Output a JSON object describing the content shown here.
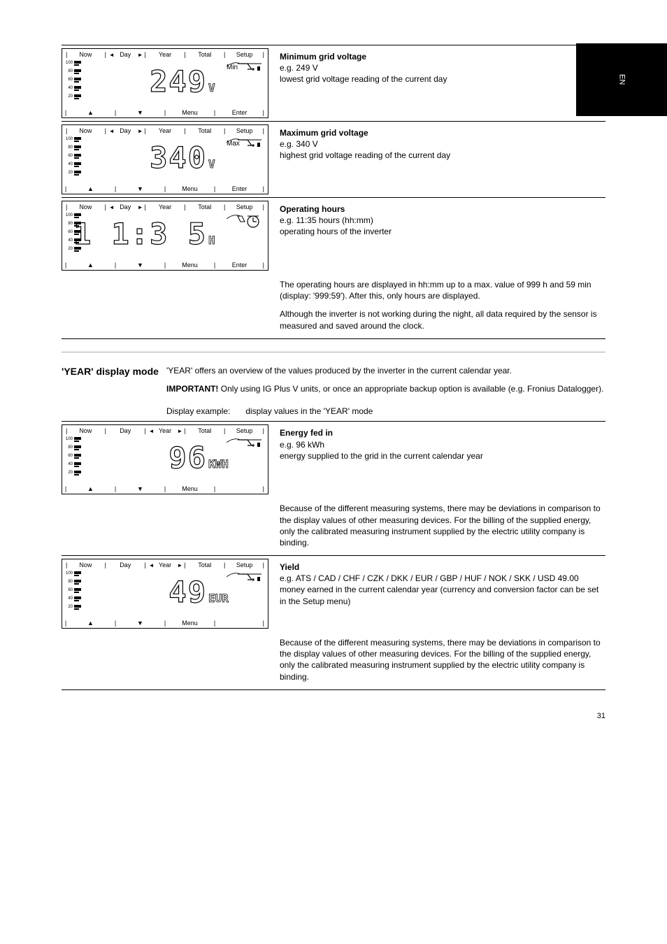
{
  "side_tab": "EN",
  "tabs": {
    "now": "Now",
    "day": "Day",
    "year": "Year",
    "total": "Total",
    "setup": "Setup",
    "menu": "Menu",
    "enter": "Enter"
  },
  "gauge": {
    "ticks": [
      "100",
      "80",
      "60",
      "40",
      "20"
    ]
  },
  "screens": {
    "min_grid_voltage": {
      "value": "249",
      "unit": "V",
      "tag": "Min",
      "icon": "grid-plug",
      "label": "Minimum grid voltage",
      "example": {
        "label": "e.g.",
        "value": "249 V"
      },
      "extra": "lowest grid voltage reading of the current day",
      "show_enter": true
    },
    "max_grid_voltage": {
      "value": "340",
      "unit": "V",
      "tag": "Max",
      "icon": "grid-plug",
      "label": "Maximum grid voltage",
      "example": {
        "label": "e.g.",
        "value": "340 V"
      },
      "extra": "highest grid voltage reading of the current day",
      "show_enter": true
    },
    "operating_hours": {
      "value": "1 1:3 5",
      "unit": "H",
      "tag": "",
      "icon": "clock",
      "label": "Operating hours",
      "example": {
        "label": "e.g.",
        "value": "11:35 hours (hh:mm)"
      },
      "extra": "operating hours of the inverter",
      "show_enter": true
    },
    "year_energy": {
      "value": "96",
      "unit": "KWH",
      "tag": "",
      "icon": "grid-plug",
      "label": "Energy fed in",
      "example": {
        "label": "e.g.",
        "value": "96 kWh"
      },
      "extra": "energy supplied to the grid in the current calendar year",
      "show_enter": false
    },
    "year_yield": {
      "value": "49",
      "unit": "EUR",
      "tag": "",
      "icon": "grid-plug",
      "label": "Yield",
      "example": {
        "label": "e.g.",
        "value": "ATS / CAD / CHF / CZK / DKK / EUR / GBP / HUF / NOK / SKK / USD 49.00"
      },
      "extra": "money earned in the current calendar year (currency and conversion factor can be set in the Setup menu)",
      "show_enter": false
    }
  },
  "operating_hours_note": {
    "p1": "The operating hours are displayed in hh:mm up to a max. value of 999 h and 59 min (display: '999:59'). After this, only hours are displayed.",
    "p2": "Although the inverter is not working during the night, all data required by the sensor is measured and saved around the clock."
  },
  "year_section": {
    "title": "'YEAR' display mode",
    "intro_label": "Display example:",
    "intro_text": "display values in the 'YEAR' mode"
  },
  "year_header_note": "'YEAR' offers an overview of the values produced by the inverter in the current calendar year.",
  "important_label": "IMPORTANT!",
  "important_text": "Only using IG Plus V units, or once an appropriate backup option is available (e.g. Fronius Datalogger).",
  "year_bottom_note": "Because of the different measuring systems, there may be deviations in comparison to the display values of other measuring devices. For the billing of the supplied energy, only the calibrated measuring instrument supplied by the electric utility company is binding.",
  "page_number": "31",
  "style": {
    "lcd_border": "#000",
    "lcd_bg": "#ffffff",
    "font_size_body": 12,
    "font_size_title": 14
  }
}
